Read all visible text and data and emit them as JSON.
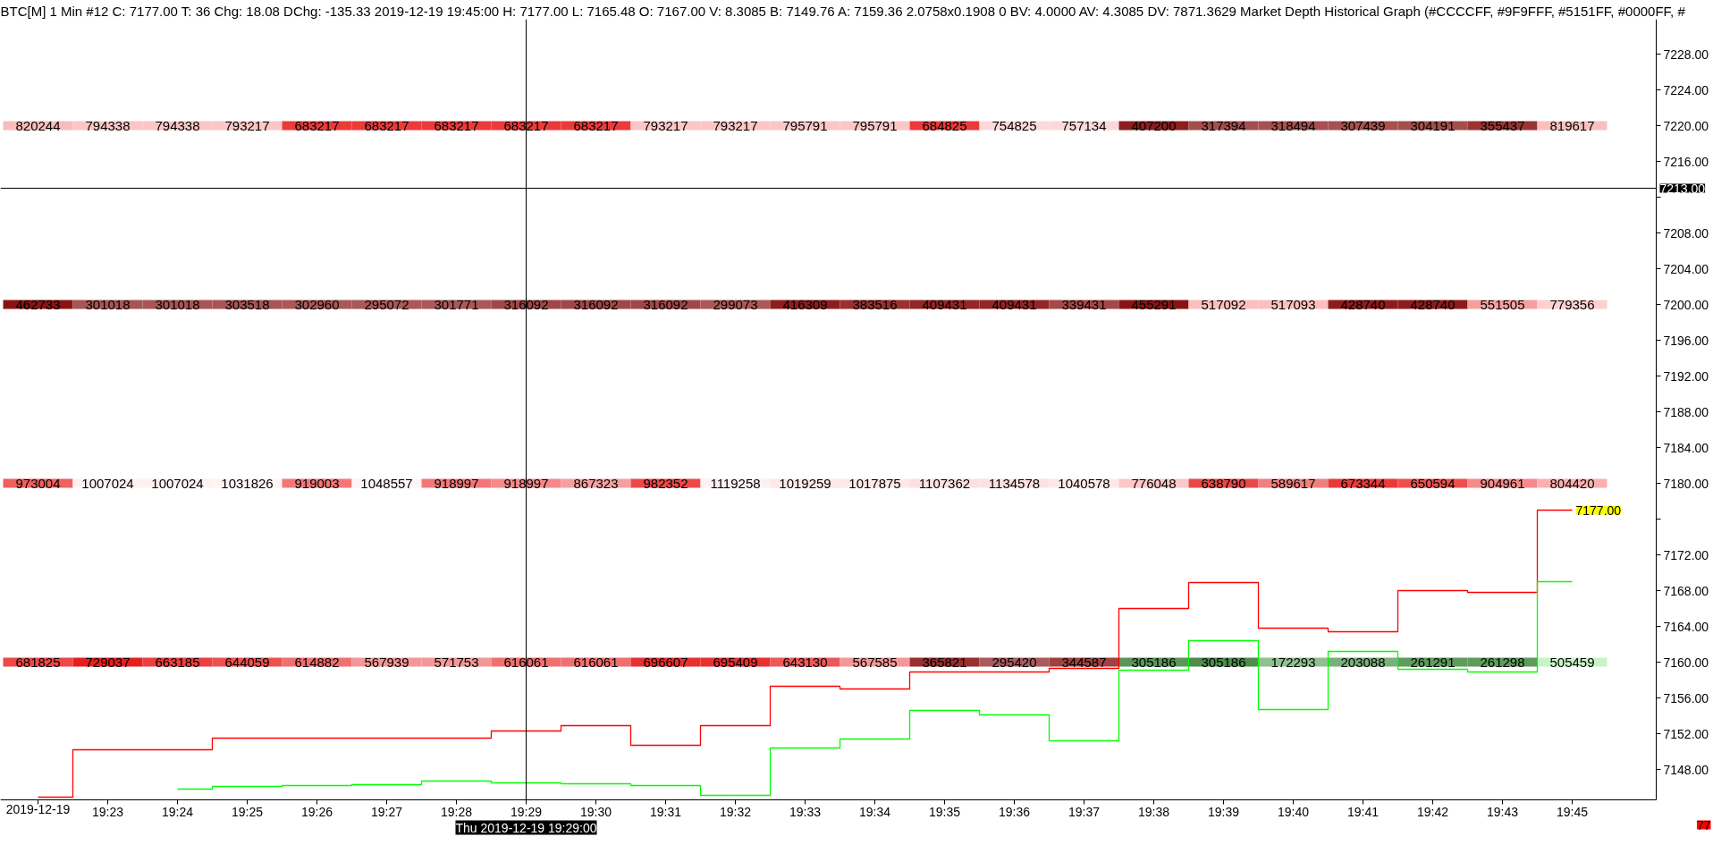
{
  "chart_data": {
    "type": "heatmap",
    "title": "BTC[M] 1 Min #12 C: 7177.00 T: 36 Chg: 18.08 DChg: -135.33 2019-12-19 19:45:00 H: 7177.00 L: 7165.48 O: 7167.00 V: 8.3085 B: 7149.76 A: 7159.36 2.0758x0.1908 0 BV: 4.0000 AV: 4.3085 DV: 7871.3629 Market Depth Historical Graph (#CCCCFF, #9F9FFF, #5151FF, #0000FF, #",
    "categories": [
      "2019-12-19",
      "19:23",
      "19:24",
      "19:25",
      "19:26",
      "19:27",
      "19:28",
      "19:29",
      "19:30",
      "19:31",
      "19:32",
      "19:33",
      "19:34",
      "19:35",
      "19:36",
      "19:37",
      "19:38",
      "19:39",
      "19:40",
      "19:41",
      "19:42",
      "19:43",
      "19:45"
    ],
    "cells": [
      [
        820244,
        794338,
        794338,
        793217,
        683217,
        683217,
        683217,
        683217,
        683217,
        793217,
        793217,
        795791,
        795791,
        684825,
        754825,
        757134,
        407200,
        317394,
        318494,
        307439,
        304191,
        355437,
        819617
      ],
      [
        462733,
        301018,
        301018,
        303518,
        302960,
        295072,
        301771,
        316092,
        316092,
        316092,
        299073,
        416309,
        383516,
        409431,
        409431,
        339431,
        455291,
        517092,
        517093,
        428740,
        428740,
        551505,
        779356
      ],
      [
        973004,
        1007024,
        1007024,
        1031826,
        919003,
        1048557,
        918997,
        918997,
        867323,
        982352,
        1119258,
        1019259,
        1017875,
        1107362,
        1134578,
        1040578,
        776048,
        638790,
        589617,
        673344,
        650594,
        904961,
        804420
      ],
      [
        681825,
        729037,
        663185,
        644059,
        614882,
        567939,
        571753,
        616061,
        616061,
        696607,
        695409,
        643130,
        567585,
        365821,
        295420,
        344587,
        305186,
        305186,
        172293,
        203088,
        261291,
        261298,
        505459
      ]
    ],
    "colors": [
      [
        "#f9bcbc",
        "#fcc6c6",
        "#fcc6c6",
        "#fcc6c6",
        "#eb3a3a",
        "#eb3a3a",
        "#eb3a3a",
        "#eb3a3a",
        "#eb3a3a",
        "#fcc6c6",
        "#fcc6c6",
        "#fcc6c6",
        "#fcc6c6",
        "#eb3a3a",
        "#fdd8d8",
        "#fdd8d8",
        "#8e1e1e",
        "#a44e4e",
        "#a85050",
        "#a85050",
        "#a44e4e",
        "#9a3434",
        "#fac0c0"
      ],
      [
        "#8a1414",
        "#a85555",
        "#a85555",
        "#a85555",
        "#aa5858",
        "#aa5858",
        "#aa5858",
        "#a04848",
        "#a04848",
        "#a04848",
        "#ac5858",
        "#8e1e1e",
        "#9a3030",
        "#932626",
        "#932626",
        "#a54848",
        "#8a1414",
        "#fbbfbf",
        "#fbbfbf",
        "#8e1c1c",
        "#8e1c1c",
        "#f5a0a0",
        "#fdd0d0"
      ],
      [
        "#f06060",
        "#fef0f0",
        "#fef0f0",
        "#fef4f4",
        "#f27878",
        "#fef4f4",
        "#f27878",
        "#f58888",
        "#f5a0a0",
        "#ee4848",
        "#fef0f0",
        "#fee8e8",
        "#fee8e8",
        "#fde0e0",
        "#fde0e0",
        "#fde8e8",
        "#fcc8c8",
        "#e84848",
        "#f08080",
        "#e83a3a",
        "#ec5050",
        "#f58a8a",
        "#fbb0b0"
      ],
      [
        "#ee4848",
        "#e81e1e",
        "#ec4040",
        "#ee5050",
        "#f07070",
        "#f39898",
        "#f39898",
        "#f07070",
        "#f07070",
        "#e83030",
        "#e83030",
        "#ee5858",
        "#f39898",
        "#9a2e2e",
        "#aa5a5a",
        "#a04040",
        "#5a965a",
        "#4e8c4e",
        "#90c090",
        "#7ab07a",
        "#5e9c5e",
        "#5e9c5e",
        "#c8f5c8"
      ]
    ],
    "data_labels": true,
    "series": [
      {
        "type": "step",
        "color": "#ff0000",
        "values": [
          7144.9,
          7150.2,
          7150.2,
          7151.5,
          7151.5,
          7151.5,
          7151.5,
          7152.3,
          7152.9,
          7150.7,
          7152.9,
          7157.3,
          7157.0,
          7158.9,
          7158.9,
          7159.3,
          7166.0,
          7168.9,
          7163.8,
          7163.4,
          7168.0,
          7167.8,
          7177.0
        ],
        "value_labels": [
          null,
          null,
          null,
          null,
          null,
          null,
          null,
          null,
          null,
          null,
          null,
          null,
          null,
          null,
          null,
          null,
          null,
          null,
          null,
          null,
          null,
          null,
          "7177.00"
        ]
      },
      {
        "type": "step",
        "color": "#00ff00",
        "values": [
          null,
          null,
          7145.8,
          7146.1,
          7146.2,
          7146.3,
          7146.7,
          7146.5,
          7146.4,
          7146.2,
          7145.1,
          7150.4,
          7151.4,
          7154.6,
          7154.1,
          7151.2,
          7159.1,
          7162.4,
          7154.7,
          7161.2,
          7159.2,
          7158.9,
          7169.0
        ],
        "value_labels": [
          null,
          null,
          null,
          null,
          null,
          null,
          null,
          null,
          null,
          null,
          null,
          null,
          null,
          null,
          null,
          null,
          null,
          null,
          null,
          null,
          null,
          null,
          null
        ]
      }
    ],
    "ylim": [
      7144.6,
      7231.9
    ],
    "yticks": [
      {
        "value": 7148,
        "label": "7148.00"
      },
      {
        "value": 7152,
        "label": "7152.00"
      },
      {
        "value": 7156,
        "label": "7156.00"
      },
      {
        "value": 7160,
        "label": "7160.00"
      },
      {
        "value": 7164,
        "label": "7164.00"
      },
      {
        "value": 7168,
        "label": "7168.00"
      },
      {
        "value": 7172,
        "label": "7172.00"
      },
      {
        "value": 7176,
        "label": null
      },
      {
        "value": 7180,
        "label": "7180.00"
      },
      {
        "value": 7184,
        "label": "7184.00"
      },
      {
        "value": 7188,
        "label": "7188.00"
      },
      {
        "value": 7192,
        "label": "7192.00"
      },
      {
        "value": 7196,
        "label": "7196.00"
      },
      {
        "value": 7200,
        "label": "7200.00"
      },
      {
        "value": 7204,
        "label": "7204.00"
      },
      {
        "value": 7208,
        "label": "7208.00"
      },
      {
        "value": 7212,
        "label": null
      },
      {
        "value": 7216,
        "label": "7216.00"
      },
      {
        "value": 7220,
        "label": "7220.00"
      },
      {
        "value": 7224,
        "label": "7224.00"
      },
      {
        "value": 7228,
        "label": "7228.00"
      }
    ],
    "ref_lines": [
      {
        "axis": "y",
        "value": 7213,
        "label": "7213.00",
        "color": "#000000"
      },
      {
        "axis": "x",
        "value": "19:29",
        "label": "Thu 2019-12-19 19:29:00",
        "color": "#000000"
      }
    ],
    "annotations": [
      "77"
    ]
  }
}
